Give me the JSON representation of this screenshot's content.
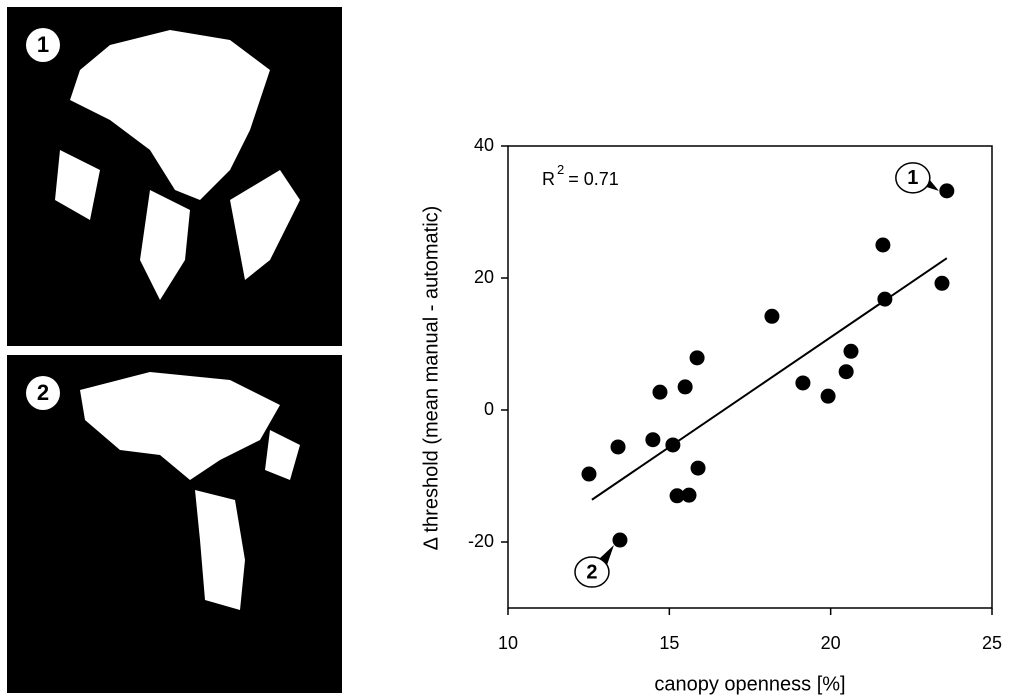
{
  "photos": [
    {
      "label": "1"
    },
    {
      "label": "2"
    }
  ],
  "chart_data": {
    "type": "scatter",
    "x_label": "canopy openness [%]",
    "y_label": "Δ threshold (mean manual - automatic)",
    "annotation": {
      "base": "R",
      "sup": "2",
      "rest": "= 0.71"
    },
    "xlim": [
      10,
      25
    ],
    "xticks": [
      10,
      15,
      20,
      25
    ],
    "ylim": [
      -30,
      40
    ],
    "yticks": [
      -20,
      0,
      20,
      40
    ],
    "color": "#000000",
    "x": [
      12.51,
      13.41,
      13.47,
      14.49,
      14.71,
      15.11,
      15.24,
      15.49,
      15.61,
      15.86,
      15.89,
      18.18,
      19.14,
      19.92,
      20.48,
      20.63,
      21.62,
      21.68,
      23.45,
      23.6
    ],
    "values": [
      -9.7,
      -5.6,
      -19.7,
      -4.5,
      2.7,
      -5.3,
      -13.0,
      3.5,
      -12.9,
      7.9,
      -8.8,
      14.2,
      4.1,
      2.1,
      5.8,
      8.9,
      25.0,
      16.8,
      19.2,
      33.2
    ],
    "point_labels": [
      null,
      null,
      "2",
      null,
      null,
      null,
      null,
      null,
      null,
      null,
      null,
      null,
      null,
      null,
      null,
      null,
      null,
      null,
      null,
      "1"
    ],
    "trend_line": {
      "x": [
        12.6,
        23.6
      ],
      "y": [
        -13.6,
        23.0
      ]
    }
  }
}
